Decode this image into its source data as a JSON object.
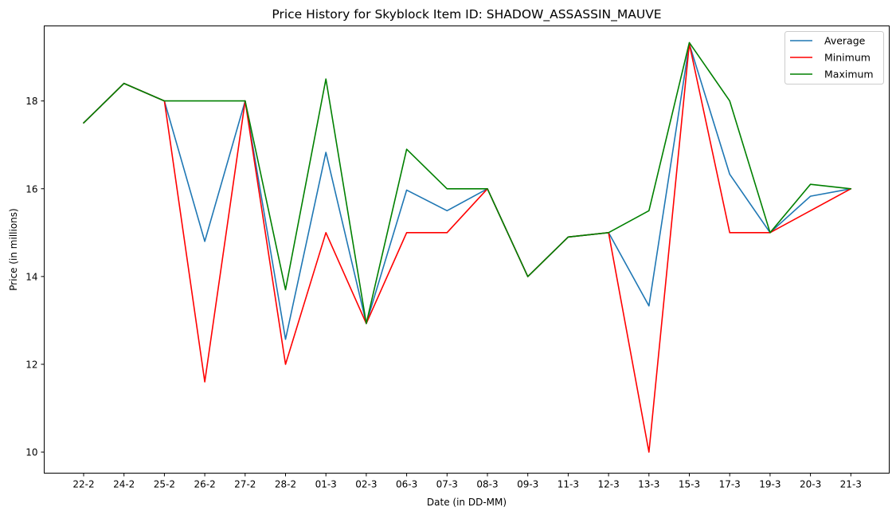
{
  "chart_data": {
    "type": "line",
    "title": "Price History for Skyblock Item ID: SHADOW_ASSASSIN_MAUVE",
    "xlabel": "Date (in DD-MM)",
    "ylabel": "Price (in millions)",
    "categories": [
      "22-2",
      "24-2",
      "25-2",
      "26-2",
      "27-2",
      "28-2",
      "01-3",
      "02-3",
      "06-3",
      "07-3",
      "08-3",
      "09-3",
      "11-3",
      "12-3",
      "13-3",
      "15-3",
      "17-3",
      "19-3",
      "20-3",
      "21-3"
    ],
    "yticks": [
      10,
      12,
      14,
      16,
      18
    ],
    "ylim": [
      9.52,
      19.71
    ],
    "grid": false,
    "legend_position": "top-right",
    "series": [
      {
        "name": "Average",
        "color": "#1f77b4",
        "values": [
          17.5,
          18.4,
          18.0,
          14.8,
          18.0,
          12.57,
          16.83,
          12.93,
          15.97,
          15.5,
          16.0,
          14.0,
          14.9,
          15.0,
          13.33,
          19.3,
          16.33,
          15.0,
          15.83,
          16.0
        ]
      },
      {
        "name": "Minimum",
        "color": "#ff0000",
        "values": [
          17.5,
          18.4,
          18.0,
          11.6,
          18.0,
          12.0,
          15.0,
          12.93,
          15.0,
          15.0,
          16.0,
          14.0,
          14.9,
          15.0,
          10.0,
          19.3,
          15.0,
          15.0,
          15.5,
          16.0
        ]
      },
      {
        "name": "Maximum",
        "color": "#008000",
        "values": [
          17.5,
          18.4,
          18.0,
          18.0,
          18.0,
          13.7,
          18.5,
          12.93,
          16.9,
          16.0,
          16.0,
          14.0,
          14.9,
          15.0,
          15.5,
          19.33,
          18.0,
          15.0,
          16.1,
          16.0
        ]
      }
    ]
  }
}
